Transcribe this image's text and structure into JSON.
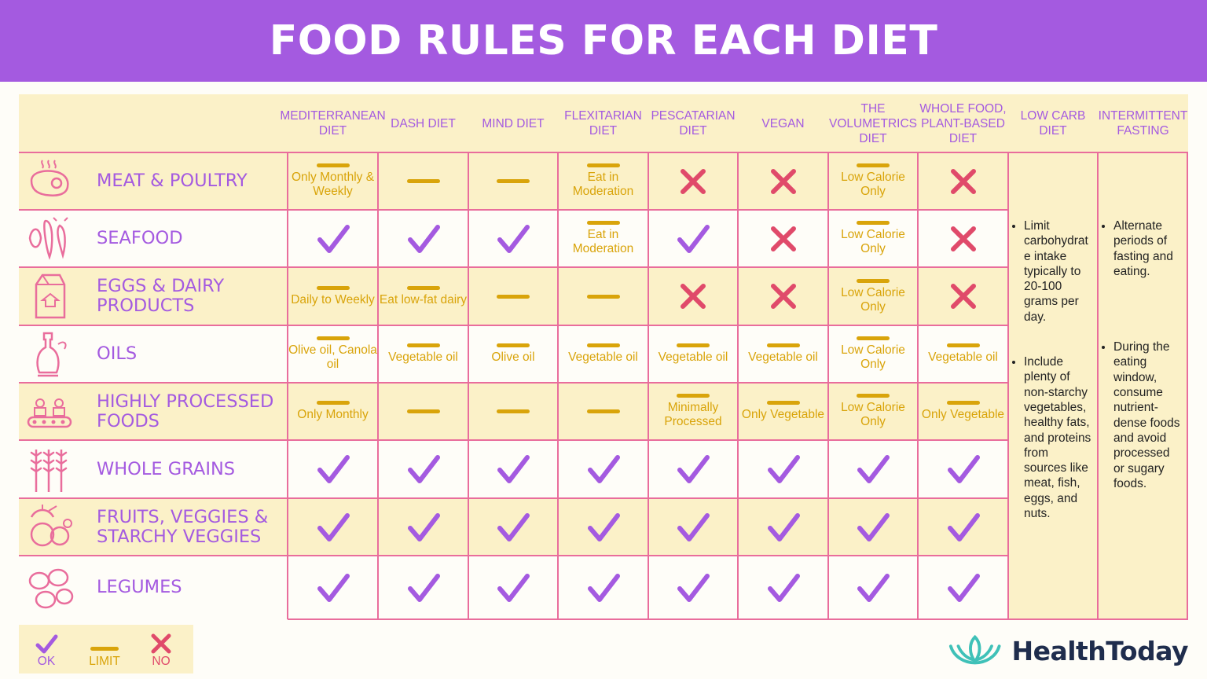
{
  "title": "FOOD RULES FOR EACH DIET",
  "colors": {
    "purple": "#a45ae0",
    "pink": "#e96d9c",
    "gold": "#d9a40a",
    "cream": "#fbf1c8",
    "red": "#e04a6a"
  },
  "columns": [
    "MEDITERRANEAN DIET",
    "DASH DIET",
    "MIND DIET",
    "FLEXITARIAN DIET",
    "PESCATARIAN DIET",
    "VEGAN",
    "THE VOLUMETRICS DIET",
    "WHOLE FOOD, PLANT-BASED DIET",
    "LOW CARB DIET",
    "INTERMITTENT FASTING"
  ],
  "rows": [
    {
      "label": "MEAT & POULTRY",
      "icon": "steak-icon",
      "cells": [
        {
          "s": "limit",
          "t": "Only Monthly & Weekly"
        },
        {
          "s": "limit",
          "t": ""
        },
        {
          "s": "limit",
          "t": ""
        },
        {
          "s": "limit",
          "t": "Eat in Moderation"
        },
        {
          "s": "no",
          "t": ""
        },
        {
          "s": "no",
          "t": ""
        },
        {
          "s": "limit",
          "t": "Low Calorie Only"
        },
        {
          "s": "no",
          "t": ""
        }
      ]
    },
    {
      "label": "SEAFOOD",
      "icon": "seafood-icon",
      "cells": [
        {
          "s": "ok",
          "t": ""
        },
        {
          "s": "ok",
          "t": ""
        },
        {
          "s": "ok",
          "t": ""
        },
        {
          "s": "limit",
          "t": "Eat in Moderation"
        },
        {
          "s": "ok",
          "t": ""
        },
        {
          "s": "no",
          "t": ""
        },
        {
          "s": "limit",
          "t": "Low Calorie Only"
        },
        {
          "s": "no",
          "t": ""
        }
      ]
    },
    {
      "label": "EGGS & DAIRY PRODUCTS",
      "icon": "milk-carton-icon",
      "cells": [
        {
          "s": "limit",
          "t": "Daily to Weekly"
        },
        {
          "s": "limit",
          "t": "Eat low-fat dairy"
        },
        {
          "s": "limit",
          "t": ""
        },
        {
          "s": "limit",
          "t": ""
        },
        {
          "s": "no",
          "t": ""
        },
        {
          "s": "no",
          "t": ""
        },
        {
          "s": "limit",
          "t": "Low Calorie Only"
        },
        {
          "s": "no",
          "t": ""
        }
      ]
    },
    {
      "label": "OILS",
      "icon": "oil-bottle-icon",
      "cells": [
        {
          "s": "limit",
          "t": "Olive oil, Canola oil"
        },
        {
          "s": "limit",
          "t": "Vegetable oil"
        },
        {
          "s": "limit",
          "t": "Olive oil"
        },
        {
          "s": "limit",
          "t": "Vegetable oil"
        },
        {
          "s": "limit",
          "t": "Vegetable oil"
        },
        {
          "s": "limit",
          "t": "Vegetable oil"
        },
        {
          "s": "limit",
          "t": "Low Calorie Only"
        },
        {
          "s": "limit",
          "t": "Vegetable oil"
        }
      ]
    },
    {
      "label": "HIGHLY PROCESSED FOODS",
      "icon": "conveyor-icon",
      "cells": [
        {
          "s": "limit",
          "t": "Only Monthly"
        },
        {
          "s": "limit",
          "t": ""
        },
        {
          "s": "limit",
          "t": ""
        },
        {
          "s": "limit",
          "t": ""
        },
        {
          "s": "limit",
          "t": "Minimally Processed"
        },
        {
          "s": "limit",
          "t": "Only Vegetable"
        },
        {
          "s": "limit",
          "t": "Low Calorie Only"
        },
        {
          "s": "limit",
          "t": "Only Vegetable"
        }
      ]
    },
    {
      "label": "WHOLE GRAINS",
      "icon": "wheat-icon",
      "cells": [
        {
          "s": "ok",
          "t": ""
        },
        {
          "s": "ok",
          "t": ""
        },
        {
          "s": "ok",
          "t": ""
        },
        {
          "s": "ok",
          "t": ""
        },
        {
          "s": "ok",
          "t": ""
        },
        {
          "s": "ok",
          "t": ""
        },
        {
          "s": "ok",
          "t": ""
        },
        {
          "s": "ok",
          "t": ""
        }
      ]
    },
    {
      "label": "FRUITS, VEGGIES & STARCHY VEGGIES",
      "icon": "fruits-icon",
      "cells": [
        {
          "s": "ok",
          "t": ""
        },
        {
          "s": "ok",
          "t": ""
        },
        {
          "s": "ok",
          "t": ""
        },
        {
          "s": "ok",
          "t": ""
        },
        {
          "s": "ok",
          "t": ""
        },
        {
          "s": "ok",
          "t": ""
        },
        {
          "s": "ok",
          "t": ""
        },
        {
          "s": "ok",
          "t": ""
        }
      ]
    },
    {
      "label": "LEGUMES",
      "icon": "beans-icon",
      "cells": [
        {
          "s": "ok",
          "t": ""
        },
        {
          "s": "ok",
          "t": ""
        },
        {
          "s": "ok",
          "t": ""
        },
        {
          "s": "ok",
          "t": ""
        },
        {
          "s": "ok",
          "t": ""
        },
        {
          "s": "ok",
          "t": ""
        },
        {
          "s": "ok",
          "t": ""
        },
        {
          "s": "ok",
          "t": ""
        }
      ]
    }
  ],
  "low_carb_notes": [
    "Limit carbohydrat e intake typically to 20-100 grams per day.",
    "Include plenty of non-starchy vegetables, healthy fats, and proteins from sources like meat, fish, eggs, and nuts."
  ],
  "fasting_notes": [
    "Alternate periods of fasting and eating.",
    "During the eating window, consume nutrient-dense foods and avoid processed or sugary foods."
  ],
  "legend": [
    {
      "label": "OK",
      "icon": "check-icon"
    },
    {
      "label": "LIMIT",
      "icon": "dash-icon"
    },
    {
      "label": "NO",
      "icon": "x-icon"
    }
  ],
  "brand": "HealthToday"
}
